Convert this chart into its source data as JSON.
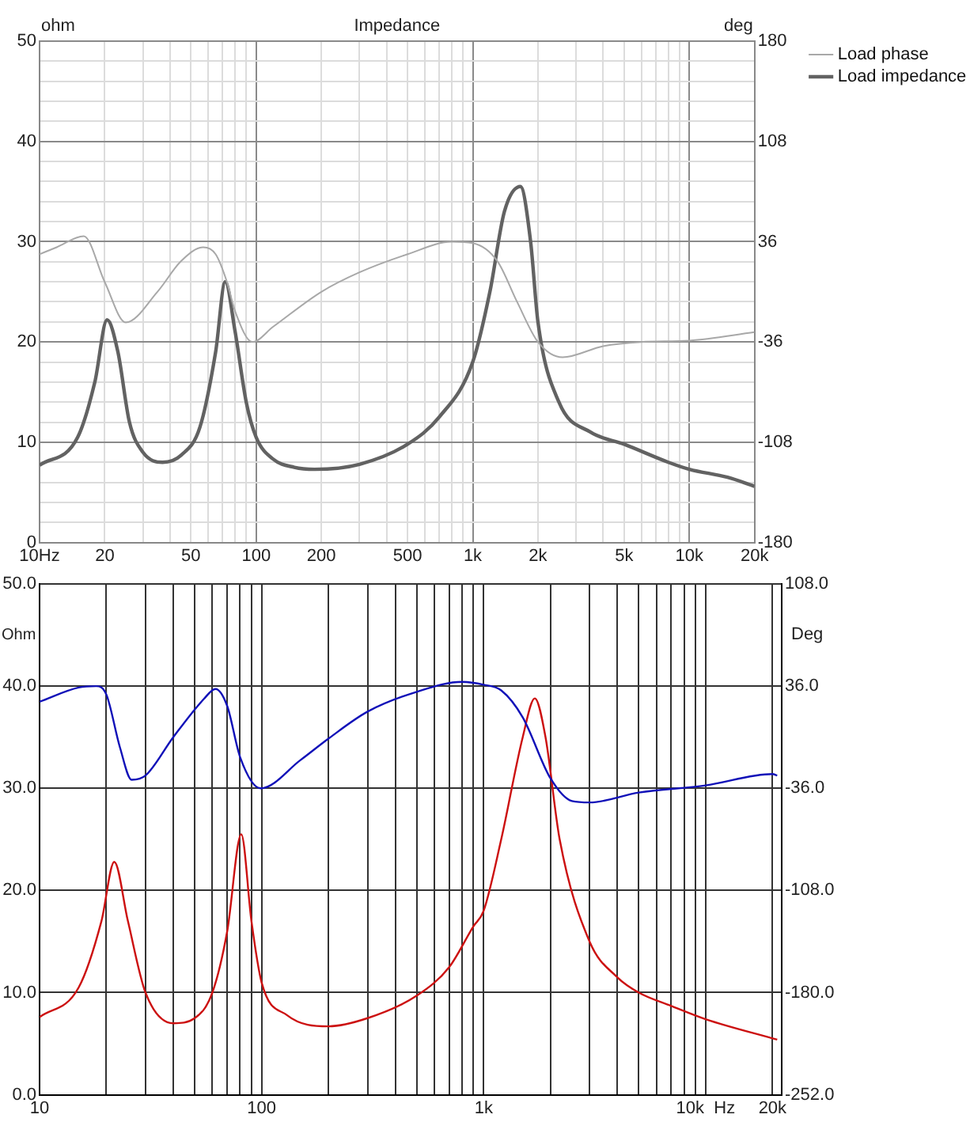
{
  "chart_data": [
    {
      "type": "line",
      "title": "Impedance",
      "ylabel": "ohm",
      "y2label": "deg",
      "log": "x",
      "grid": true,
      "legend": "top right",
      "xlim": [
        10,
        20000
      ],
      "ylim": [
        0,
        50
      ],
      "y2lim": [
        -180,
        180
      ],
      "xticks": [
        {
          "value": 10,
          "label": "10Hz"
        },
        20,
        {
          "value": 30,
          "label": null
        },
        {
          "value": 40,
          "label": null
        },
        50,
        {
          "value": 60,
          "label": null
        },
        {
          "value": 70,
          "label": null
        },
        {
          "value": 80,
          "label": null
        },
        {
          "value": 90,
          "label": null
        },
        100,
        200,
        {
          "value": 300,
          "label": null
        },
        {
          "value": 400,
          "label": null
        },
        500,
        {
          "value": 600,
          "label": null
        },
        {
          "value": 700,
          "label": null
        },
        {
          "value": 800,
          "label": null
        },
        {
          "value": 900,
          "label": null
        },
        {
          "value": 1000,
          "label": "1k"
        },
        {
          "value": 2000,
          "label": "2k"
        },
        {
          "value": 3000,
          "label": null
        },
        {
          "value": 4000,
          "label": null
        },
        {
          "value": 5000,
          "label": "5k"
        },
        {
          "value": 6000,
          "label": null
        },
        {
          "value": 7000,
          "label": null
        },
        {
          "value": 8000,
          "label": null
        },
        {
          "value": 9000,
          "label": null
        },
        {
          "value": 10000,
          "label": "10k"
        },
        {
          "value": 20000,
          "label": "20k"
        }
      ],
      "yticks": [
        0,
        {
          "value": 2,
          "label": null
        },
        {
          "value": 4,
          "label": null
        },
        {
          "value": 6,
          "label": null
        },
        {
          "value": 8,
          "label": null
        },
        10,
        {
          "value": 12,
          "label": null
        },
        {
          "value": 14,
          "label": null
        },
        {
          "value": 16,
          "label": null
        },
        {
          "value": 18,
          "label": null
        },
        20,
        {
          "value": 22,
          "label": null
        },
        {
          "value": 24,
          "label": null
        },
        {
          "value": 26,
          "label": null
        },
        {
          "value": 28,
          "label": null
        },
        30,
        {
          "value": 32,
          "label": null
        },
        {
          "value": 34,
          "label": null
        },
        {
          "value": 36,
          "label": null
        },
        {
          "value": 38,
          "label": null
        },
        40,
        {
          "value": 42,
          "label": null
        },
        {
          "value": 44,
          "label": null
        },
        {
          "value": 46,
          "label": null
        },
        {
          "value": 48,
          "label": null
        },
        50
      ],
      "y2ticks": [
        -180,
        -108,
        -36,
        36,
        108,
        180
      ],
      "series": [
        {
          "name": "Load phase",
          "color": "#a8a8a8",
          "axis": "y2",
          "x": [
            10,
            12,
            16,
            20,
            25,
            35,
            45,
            57,
            65,
            73,
            80,
            96,
            120,
            200,
            300,
            500,
            800,
            1000,
            1300,
            1600,
            2000,
            2600,
            4000,
            6000,
            10000,
            20000
          ],
          "values": [
            27,
            32,
            40,
            7,
            -22,
            0,
            22,
            32,
            27,
            8,
            -14,
            -36,
            -25,
            0,
            14,
            27,
            36,
            35,
            22,
            -7,
            -36,
            -47,
            -39,
            -36,
            -35,
            -29
          ]
        },
        {
          "name": "Load impedance",
          "color": "#626262",
          "x": [
            10,
            15,
            18,
            20.5,
            23,
            26,
            30,
            37,
            45,
            55,
            65,
            72,
            80,
            90,
            100,
            120,
            150,
            186,
            300,
            500,
            700,
            1000,
            1200,
            1400,
            1660,
            1850,
            2000,
            2500,
            3500,
            5000,
            8000,
            10000,
            15000,
            20000
          ],
          "values": [
            7.7,
            10.5,
            16,
            22.2,
            19,
            12,
            9,
            8,
            8.7,
            11.5,
            19,
            26,
            21,
            14,
            10.5,
            8.3,
            7.5,
            7.3,
            7.8,
            9.8,
            12.5,
            18,
            25,
            33,
            35.5,
            30,
            22,
            14,
            11,
            9.8,
            8,
            7.3,
            6.5,
            5.6
          ]
        }
      ]
    },
    {
      "type": "line",
      "ylabel": "Ohm",
      "y2label": "Deg",
      "log": "x",
      "grid": true,
      "xlim": [
        10,
        22000
      ],
      "ylim": [
        0,
        50
      ],
      "y2lim": [
        -252,
        108
      ],
      "xticks": [
        {
          "value": 10,
          "label": "10"
        },
        {
          "value": 20,
          "label": null
        },
        {
          "value": 30,
          "label": null
        },
        {
          "value": 40,
          "label": null
        },
        {
          "value": 50,
          "label": null
        },
        {
          "value": 60,
          "label": null
        },
        {
          "value": 70,
          "label": null
        },
        {
          "value": 80,
          "label": null
        },
        {
          "value": 90,
          "label": null
        },
        {
          "value": 100,
          "label": "100"
        },
        {
          "value": 200,
          "label": null
        },
        {
          "value": 300,
          "label": null
        },
        {
          "value": 400,
          "label": null
        },
        {
          "value": 500,
          "label": null
        },
        {
          "value": 600,
          "label": null
        },
        {
          "value": 700,
          "label": null
        },
        {
          "value": 800,
          "label": null
        },
        {
          "value": 900,
          "label": null
        },
        {
          "value": 1000,
          "label": "1k"
        },
        {
          "value": 2000,
          "label": null
        },
        {
          "value": 3000,
          "label": null
        },
        {
          "value": 4000,
          "label": null
        },
        {
          "value": 5000,
          "label": null
        },
        {
          "value": 6000,
          "label": null
        },
        {
          "value": 7000,
          "label": null
        },
        {
          "value": 8000,
          "label": null
        },
        {
          "value": 9000,
          "label": null
        },
        {
          "value": 10000,
          "label": "10k  Hz"
        },
        {
          "value": 20000,
          "label": "20k"
        }
      ],
      "yticks": [
        {
          "value": 0,
          "label": "0.0"
        },
        {
          "value": 10,
          "label": "10.0"
        },
        {
          "value": 20,
          "label": "20.0"
        },
        {
          "value": 30,
          "label": "30.0"
        },
        {
          "value": 40,
          "label": "40.0"
        },
        {
          "value": 50,
          "label": "50.0"
        }
      ],
      "y2ticks": [
        {
          "value": -252,
          "label": "-252.0"
        },
        {
          "value": -180,
          "label": "-180.0"
        },
        {
          "value": -108,
          "label": "-108.0"
        },
        {
          "value": -36,
          "label": "-36.0"
        },
        {
          "value": 36,
          "label": "36.0"
        },
        {
          "value": 108,
          "label": "108.0"
        }
      ],
      "series": [
        {
          "color": "#1010b8",
          "axis": "y2",
          "x": [
            10,
            15,
            18,
            20,
            23,
            26,
            30,
            40,
            55,
            62,
            70,
            80,
            99,
            150,
            200,
            300,
            500,
            800,
            1000,
            1200,
            1500,
            2000,
            2500,
            3000,
            5000,
            10000,
            20000,
            21000
          ],
          "values": [
            25,
            35,
            36,
            30,
            -7,
            -30,
            -27,
            0,
            27,
            34,
            22,
            -14,
            -36,
            -16,
            -1,
            18,
            32,
            39,
            37,
            33,
            14,
            -29,
            -45,
            -46,
            -39,
            -34,
            -26,
            -27
          ]
        },
        {
          "color": "#cc1010",
          "x": [
            10,
            15,
            19,
            21.7,
            25,
            30,
            40,
            50,
            60,
            70,
            81,
            90,
            100,
            130,
            200,
            300,
            500,
            700,
            900,
            1000,
            1200,
            1500,
            1700,
            1900,
            2200,
            3000,
            4000,
            5000,
            7000,
            10000,
            21000
          ],
          "values": [
            7.6,
            10.5,
            17,
            22.8,
            17,
            10,
            7,
            7.5,
            10,
            16,
            25.5,
            17,
            11,
            7.8,
            6.7,
            7.5,
            9.7,
            12.5,
            16.5,
            18,
            25,
            35,
            38.8,
            35,
            25,
            15,
            11.5,
            10,
            8.7,
            7.4,
            5.4
          ]
        }
      ]
    }
  ]
}
